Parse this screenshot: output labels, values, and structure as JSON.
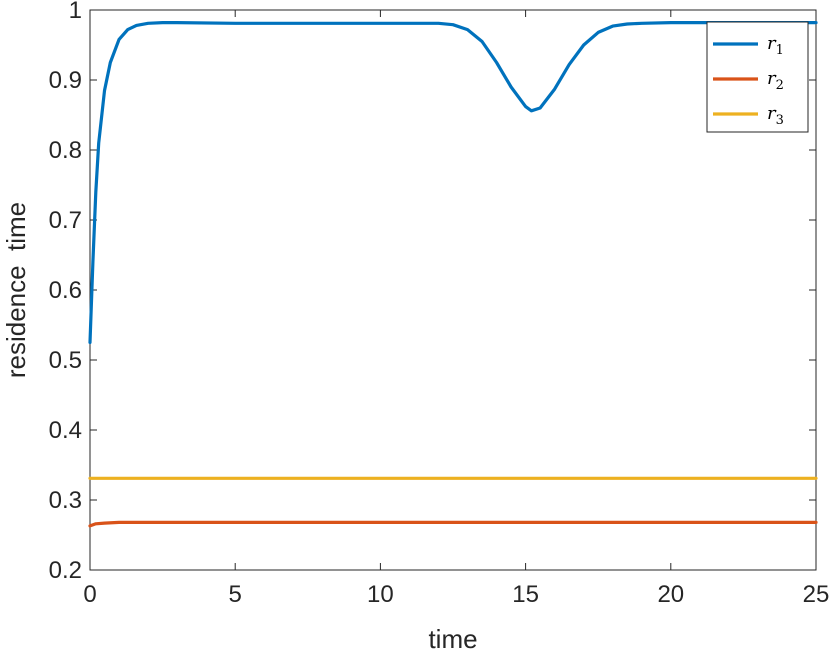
{
  "chart_data": {
    "type": "line",
    "xlabel": "time",
    "ylabel": "residence  time",
    "xlim": [
      0,
      25
    ],
    "ylim": [
      0.2,
      1
    ],
    "x_ticks": [
      0,
      5,
      10,
      15,
      20,
      25
    ],
    "y_ticks": [
      0.2,
      0.3,
      0.4,
      0.5,
      0.6,
      0.7,
      0.8,
      0.9,
      1
    ],
    "x_tick_labels": [
      "0",
      "5",
      "10",
      "15",
      "20",
      "25"
    ],
    "y_tick_labels": [
      "0.2",
      "0.3",
      "0.4",
      "0.5",
      "0.6",
      "0.7",
      "0.8",
      "0.9",
      "1"
    ],
    "grid": false,
    "legend_position": "top-right",
    "series": [
      {
        "name": "r1",
        "color": "#0072BD",
        "x": [
          0,
          0.1,
          0.2,
          0.3,
          0.5,
          0.7,
          1.0,
          1.3,
          1.6,
          2.0,
          2.5,
          3,
          5,
          8,
          10,
          12,
          12.5,
          13,
          13.5,
          14,
          14.5,
          15,
          15.2,
          15.5,
          16,
          16.5,
          17,
          17.5,
          18,
          18.5,
          19,
          20,
          22,
          25
        ],
        "y": [
          0.525,
          0.64,
          0.74,
          0.81,
          0.885,
          0.925,
          0.958,
          0.972,
          0.978,
          0.981,
          0.982,
          0.982,
          0.981,
          0.981,
          0.981,
          0.981,
          0.979,
          0.972,
          0.955,
          0.925,
          0.89,
          0.862,
          0.856,
          0.86,
          0.887,
          0.922,
          0.95,
          0.968,
          0.977,
          0.98,
          0.981,
          0.982,
          0.982,
          0.982
        ]
      },
      {
        "name": "r2",
        "color": "#D95319",
        "x": [
          0,
          0.2,
          0.5,
          1,
          2,
          25
        ],
        "y": [
          0.263,
          0.266,
          0.267,
          0.268,
          0.268,
          0.268
        ]
      },
      {
        "name": "r3",
        "color": "#EDB120",
        "x": [
          0,
          25
        ],
        "y": [
          0.331,
          0.331
        ]
      }
    ],
    "legend": [
      {
        "base": "r",
        "sub": "1",
        "color": "#0072BD"
      },
      {
        "base": "r",
        "sub": "2",
        "color": "#D95319"
      },
      {
        "base": "r",
        "sub": "3",
        "color": "#EDB120"
      }
    ]
  }
}
